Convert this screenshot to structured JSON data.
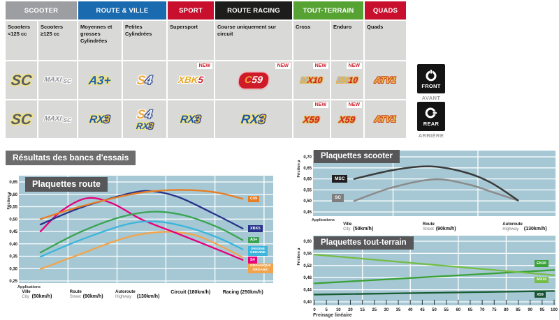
{
  "table": {
    "new_label": "NEW",
    "groups": [
      {
        "label": "SCOOTER",
        "color": "#9c9ea1",
        "span": 2
      },
      {
        "label": "ROUTE & VILLE",
        "color": "#1a6ab0",
        "span": 2
      },
      {
        "label": "SPORT",
        "color": "#c8102e",
        "span": 1
      },
      {
        "label": "ROUTE RACING",
        "color": "#1d1d1b",
        "span": 1
      },
      {
        "label": "TOUT-TERRAIN",
        "color": "#56a334",
        "span": 2
      },
      {
        "label": "QUADS",
        "color": "#c8102e",
        "span": 1
      }
    ],
    "columns": [
      "Scooters <125 cc",
      "Scooters ≥125 cc",
      "Moyennes et grosses Cylindrées",
      "Petites Cylindrées",
      "Supersport",
      "Course uniquement sur circuit",
      "Cross",
      "Enduro",
      "Quads"
    ],
    "front_row": [
      {
        "logo": "sc"
      },
      {
        "logo": "maxisc"
      },
      {
        "logo": "a3plus"
      },
      {
        "logo": "s4"
      },
      {
        "logo": "xbk5",
        "new": true
      },
      {
        "logo": "c59",
        "new": true
      },
      {
        "logo": "mx10",
        "new": true
      },
      {
        "logo": "en10",
        "new": true
      },
      {
        "logo": "atv1"
      }
    ],
    "rear_row": [
      {
        "logo": "sc"
      },
      {
        "logo": "maxisc"
      },
      {
        "logo": "rx3"
      },
      {
        "logo": "s4rx3"
      },
      {
        "logo": "rx3"
      },
      {
        "logo": "rx3big"
      },
      {
        "logo": "x59",
        "new": true
      },
      {
        "logo": "x59",
        "new": true
      },
      {
        "logo": "atv1"
      }
    ],
    "logos": {
      "sc": {
        "text": "SC"
      },
      "maxisc": {
        "part1": "MAXI",
        "part2": "-SC"
      },
      "a3plus": {
        "text": "A3+"
      },
      "s4": {
        "part1": "S",
        "part2": "4"
      },
      "xbk5": {
        "part1": "XBK",
        "part2": "5"
      },
      "c59": {
        "part1": "C",
        "part2": "59"
      },
      "mx10": {
        "part1": "M",
        "part2": "X10"
      },
      "en10": {
        "part1": "EN",
        "part2": "10"
      },
      "atv1": {
        "text": "ATV1"
      },
      "rx3": {
        "part1": "RX",
        "part2": "3"
      },
      "x59": {
        "text": "X59"
      }
    },
    "front_marker": {
      "label": "FRONT",
      "sub": "AVANT"
    },
    "rear_marker": {
      "label": "REAR",
      "sub": "ARRIÈRE"
    }
  },
  "banner": "Résultats des bancs d'essais",
  "colors": {
    "plot_bg": "#a5c8d4",
    "grid": "#ffffff",
    "title_bg": "#57575a"
  },
  "chart_data": [
    {
      "id": "route",
      "type": "line",
      "title": "Plaquettes route",
      "ylabel": "Friction µ",
      "applications_label": "Applications",
      "ylim": [
        0.25,
        0.65
      ],
      "yticks": [
        "0,65",
        "0,60",
        "0,55",
        "0,50",
        "0,45",
        "0,40",
        "0,35",
        "0,30",
        "0,25"
      ],
      "x_categories": [
        {
          "fr": "Ville",
          "en": "City",
          "speed": "(50km/h)",
          "pos": 0.05
        },
        {
          "fr": "Route",
          "en": "Street",
          "speed": "(90km/h)",
          "pos": 0.242
        },
        {
          "fr": "Autoroute",
          "en": "Highway",
          "speed": "(130km/h)",
          "pos": 0.435
        },
        {
          "single": "Circuit (180km/h)",
          "pos": 0.675
        },
        {
          "single": "Racing (250km/h)",
          "pos": 0.881
        }
      ],
      "series": [
        {
          "name": "C59",
          "color": "#e87d22",
          "label_lines": [
            "C59"
          ],
          "label_v": 0.582,
          "points": [
            [
              0.085,
              0.5
            ],
            [
              0.24,
              0.55
            ],
            [
              0.44,
              0.6
            ],
            [
              0.56,
              0.615
            ],
            [
              0.675,
              0.617
            ],
            [
              0.78,
              0.607
            ],
            [
              0.88,
              0.582
            ]
          ]
        },
        {
          "name": "XBK5",
          "color": "#28338c",
          "label_lines": [
            "XBK5"
          ],
          "label_v": 0.462,
          "points": [
            [
              0.085,
              0.478
            ],
            [
              0.24,
              0.545
            ],
            [
              0.44,
              0.605
            ],
            [
              0.53,
              0.612
            ],
            [
              0.63,
              0.588
            ],
            [
              0.76,
              0.525
            ],
            [
              0.88,
              0.462
            ]
          ]
        },
        {
          "name": "A3+",
          "color": "#3aa452",
          "label_lines": [
            "A3+"
          ],
          "label_v": 0.415,
          "points": [
            [
              0.085,
              0.365
            ],
            [
              0.24,
              0.447
            ],
            [
              0.4,
              0.508
            ],
            [
              0.53,
              0.53
            ],
            [
              0.65,
              0.515
            ],
            [
              0.78,
              0.468
            ],
            [
              0.88,
              0.415
            ]
          ]
        },
        {
          "name": "ORIGINE",
          "color": "#3cb5dc",
          "label_lines": [
            "ORIGINE",
            "GENUINE"
          ],
          "label_v": 0.372,
          "points": [
            [
              0.085,
              0.348
            ],
            [
              0.24,
              0.415
            ],
            [
              0.42,
              0.478
            ],
            [
              0.54,
              0.49
            ],
            [
              0.66,
              0.468
            ],
            [
              0.78,
              0.426
            ],
            [
              0.88,
              0.378
            ]
          ]
        },
        {
          "name": "S4",
          "color": "#e5007d",
          "label_lines": [
            "S4"
          ],
          "label_v": 0.335,
          "points": [
            [
              0.085,
              0.45
            ],
            [
              0.17,
              0.535
            ],
            [
              0.27,
              0.585
            ],
            [
              0.37,
              0.562
            ],
            [
              0.48,
              0.5
            ],
            [
              0.62,
              0.443
            ],
            [
              0.75,
              0.39
            ],
            [
              0.88,
              0.335
            ]
          ]
        },
        {
          "name": "ORGANIQUE",
          "color": "#f2a44d",
          "label_lines": [
            "ORGANIQUE",
            "ORGANIC"
          ],
          "label_v": 0.303,
          "points": [
            [
              0.085,
              0.298
            ],
            [
              0.24,
              0.358
            ],
            [
              0.42,
              0.425
            ],
            [
              0.56,
              0.448
            ],
            [
              0.68,
              0.438
            ],
            [
              0.78,
              0.398
            ],
            [
              0.88,
              0.345
            ]
          ]
        }
      ]
    },
    {
      "id": "scooter",
      "type": "line",
      "title": "Plaquettes scooter",
      "ylabel": "Friction µ",
      "applications_label": "Applications",
      "ylim": [
        0.45,
        0.7
      ],
      "yticks": [
        "0,70",
        "0,65",
        "0,60",
        "0,55",
        "0,50",
        "0,45"
      ],
      "x_categories": [
        {
          "fr": "Ville",
          "en": "City",
          "speed": "(50km/h)",
          "pos": 0.164
        },
        {
          "fr": "Route",
          "en": "Street",
          "speed": "(90km/h)",
          "pos": 0.496
        },
        {
          "fr": "Autoroute",
          "en": "Highway",
          "speed": "(130km/h)",
          "pos": 0.84
        }
      ],
      "series": [
        {
          "name": "MSC",
          "color": "#3a3a3a",
          "label_lines": [
            "MSC"
          ],
          "label_box": "#1f1f1f",
          "label_v": 0.6,
          "points": [
            [
              0.17,
              0.6
            ],
            [
              0.33,
              0.64
            ],
            [
              0.48,
              0.657
            ],
            [
              0.62,
              0.632
            ],
            [
              0.73,
              0.585
            ],
            [
              0.845,
              0.503
            ]
          ]
        },
        {
          "name": "SC",
          "color": "#8b8b8b",
          "label_lines": [
            "SC"
          ],
          "label_box": "#7e7e7e",
          "label_v": 0.513,
          "points": [
            [
              0.17,
              0.5
            ],
            [
              0.33,
              0.562
            ],
            [
              0.5,
              0.598
            ],
            [
              0.64,
              0.575
            ],
            [
              0.74,
              0.54
            ],
            [
              0.845,
              0.502
            ]
          ]
        }
      ]
    },
    {
      "id": "toutterrain",
      "type": "line",
      "title": "Plaquettes tout-terrain",
      "ylabel": "Friction µ",
      "xlabel": "Freinage linéaire",
      "ylim": [
        0.4,
        0.6
      ],
      "yticks": [
        "0,60",
        "0,56",
        "0,52",
        "0,48",
        "0,44",
        "0,40"
      ],
      "xticks": [
        "0",
        "5",
        "10",
        "20",
        "15",
        "25",
        "30",
        "35",
        "40",
        "45",
        "50",
        "55",
        "60",
        "65",
        "70",
        "75",
        "80",
        "85",
        "90",
        "95",
        "100"
      ],
      "xlim": [
        0,
        100
      ],
      "series": [
        {
          "name": "MX10",
          "color": "#74bd45",
          "label_lines": [
            "MX10"
          ],
          "label_v": 0.473,
          "points": [
            [
              0,
              0.556
            ],
            [
              100,
              0.488
            ]
          ]
        },
        {
          "name": "EN10",
          "color": "#3aa136",
          "label_lines": [
            "EN10"
          ],
          "label_v": 0.527,
          "points": [
            [
              0,
              0.461
            ],
            [
              100,
              0.505
            ]
          ]
        },
        {
          "name": "X59",
          "color": "#1a5c33",
          "label_lines": [
            "X59"
          ],
          "label_box": "#15522f",
          "label_v": 0.424,
          "points": [
            [
              0,
              0.424
            ],
            [
              100,
              0.436
            ]
          ]
        }
      ]
    }
  ]
}
